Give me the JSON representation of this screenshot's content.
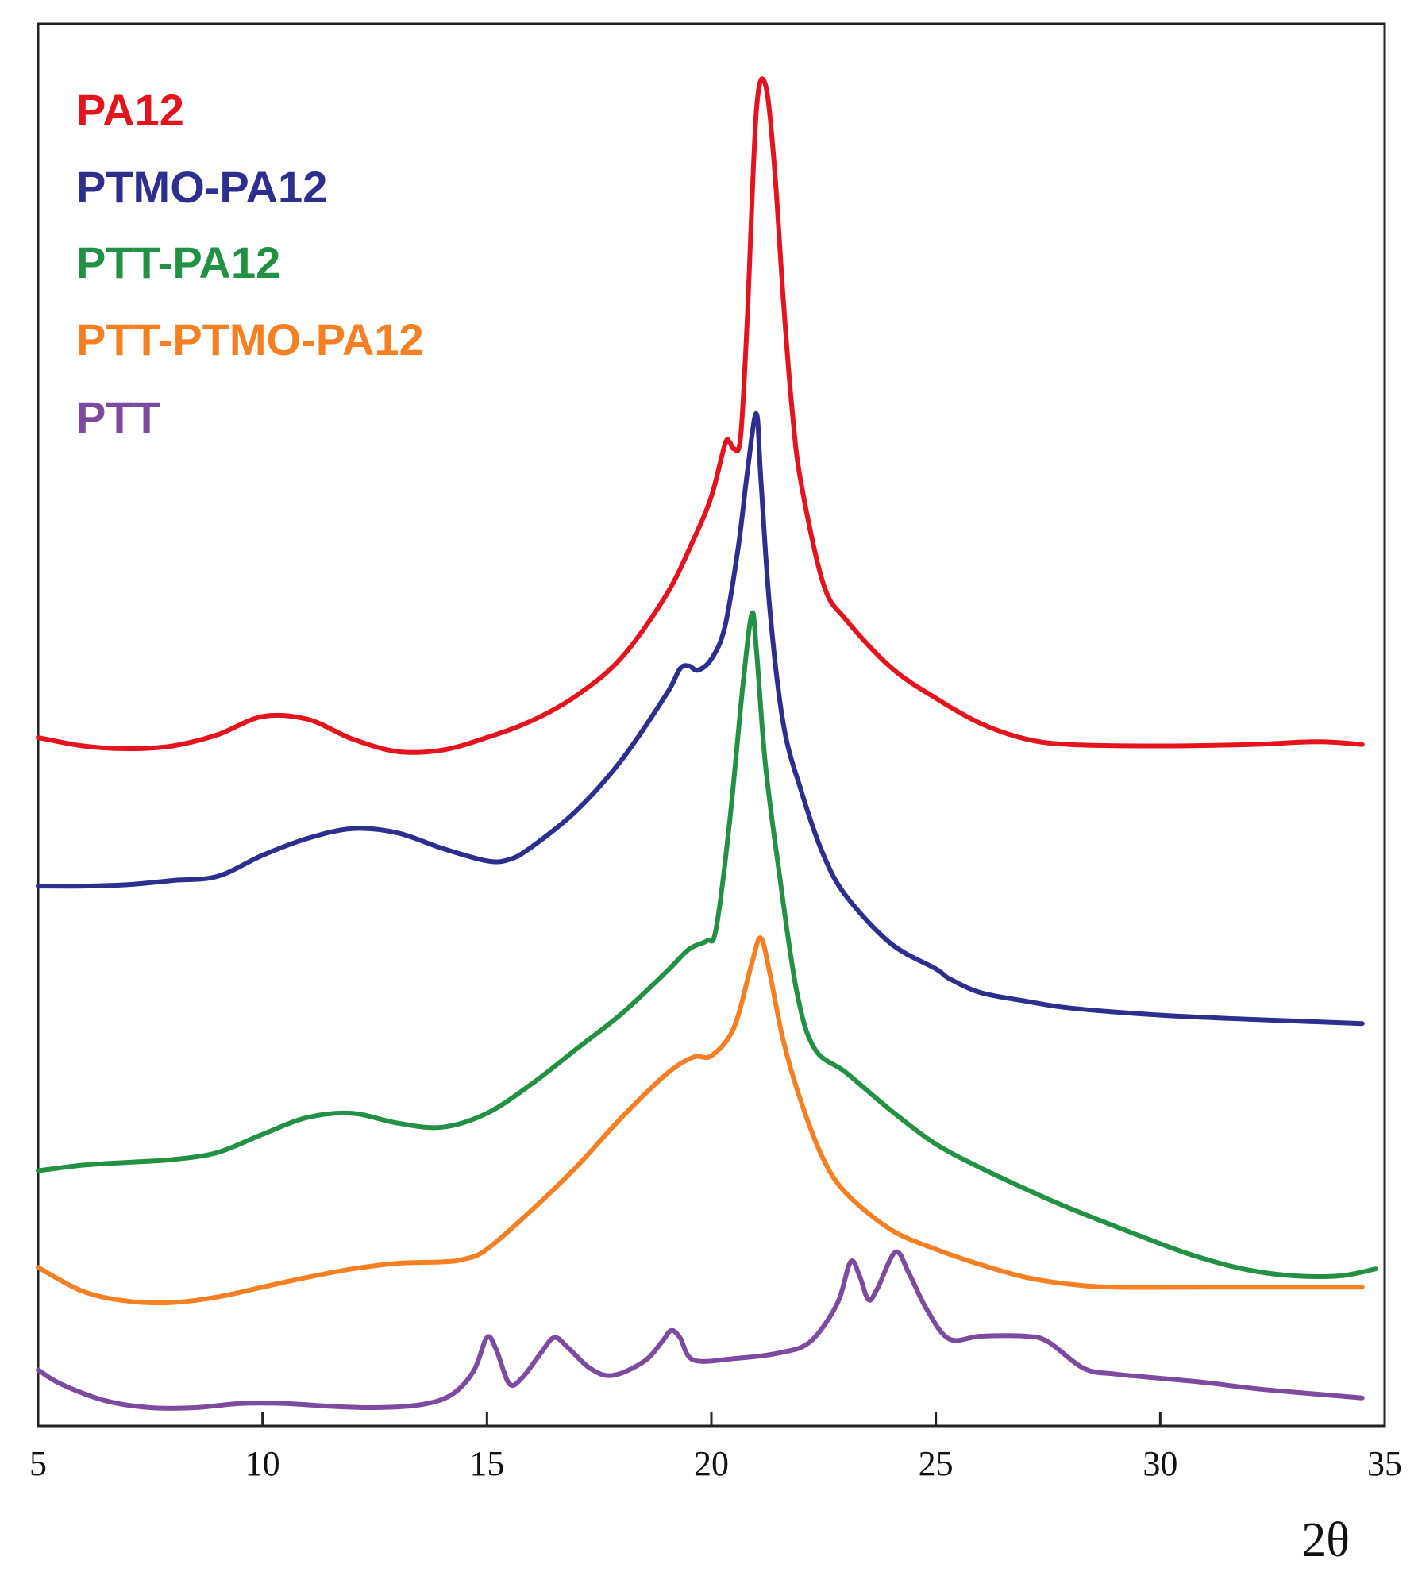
{
  "chart_data": {
    "type": "line",
    "title": "",
    "xlabel": "2θ",
    "ylabel": "",
    "xlim": [
      5,
      35
    ],
    "ylim": [
      0,
      100
    ],
    "xticks": [
      5,
      10,
      15,
      20,
      25,
      30,
      35
    ],
    "grid": false,
    "legend_position": "top-left",
    "y_axis_ticks_shown": false,
    "series": [
      {
        "name": "PA12",
        "color": "#e3141e",
        "points": [
          [
            5,
            49.1
          ],
          [
            6,
            48.5
          ],
          [
            7,
            48.3
          ],
          [
            8,
            48.5
          ],
          [
            9,
            49.3
          ],
          [
            10,
            50.6
          ],
          [
            11,
            50.4
          ],
          [
            12,
            49.0
          ],
          [
            13,
            48.1
          ],
          [
            14,
            48.2
          ],
          [
            15,
            49.1
          ],
          [
            16,
            50.3
          ],
          [
            17,
            52.1
          ],
          [
            18,
            54.8
          ],
          [
            19,
            59.3
          ],
          [
            19.6,
            63.2
          ],
          [
            20,
            66.3
          ],
          [
            20.3,
            70.0
          ],
          [
            20.4,
            70.2
          ],
          [
            20.5,
            69.7
          ],
          [
            20.65,
            70.5
          ],
          [
            20.8,
            79.0
          ],
          [
            21.0,
            93.7
          ],
          [
            21.2,
            95.7
          ],
          [
            21.4,
            90.0
          ],
          [
            21.6,
            80.4
          ],
          [
            21.8,
            72.4
          ],
          [
            22,
            67.2
          ],
          [
            22.5,
            60.0
          ],
          [
            23,
            57.5
          ],
          [
            24,
            54.1
          ],
          [
            25,
            51.9
          ],
          [
            26,
            50.1
          ],
          [
            27,
            49.0
          ],
          [
            28,
            48.6
          ],
          [
            30,
            48.5
          ],
          [
            32,
            48.6
          ],
          [
            33.5,
            48.8
          ],
          [
            34.5,
            48.6
          ]
        ]
      },
      {
        "name": "PTMO-PA12",
        "color": "#2d2e8e",
        "points": [
          [
            5,
            38.5
          ],
          [
            6,
            38.5
          ],
          [
            7,
            38.6
          ],
          [
            8,
            38.9
          ],
          [
            9,
            39.2
          ],
          [
            10,
            40.7
          ],
          [
            11,
            41.9
          ],
          [
            12,
            42.6
          ],
          [
            13,
            42.3
          ],
          [
            14,
            41.2
          ],
          [
            15,
            40.3
          ],
          [
            15.5,
            40.4
          ],
          [
            16,
            41.3
          ],
          [
            17,
            43.9
          ],
          [
            18,
            47.5
          ],
          [
            19,
            52.2
          ],
          [
            19.3,
            54.0
          ],
          [
            19.5,
            54.2
          ],
          [
            19.7,
            53.9
          ],
          [
            20,
            54.7
          ],
          [
            20.3,
            57.0
          ],
          [
            20.6,
            62.7
          ],
          [
            20.8,
            68.0
          ],
          [
            21.0,
            72.2
          ],
          [
            21.1,
            67.6
          ],
          [
            21.3,
            58.3
          ],
          [
            21.6,
            50.1
          ],
          [
            22,
            45.3
          ],
          [
            22.5,
            40.7
          ],
          [
            23,
            37.8
          ],
          [
            24,
            34.4
          ],
          [
            25,
            32.6
          ],
          [
            25.3,
            31.9
          ],
          [
            26,
            30.9
          ],
          [
            27,
            30.3
          ],
          [
            28,
            29.8
          ],
          [
            30,
            29.3
          ],
          [
            32,
            29.0
          ],
          [
            34.5,
            28.7
          ]
        ]
      },
      {
        "name": "PTT-PA12",
        "color": "#229143",
        "points": [
          [
            5,
            18.2
          ],
          [
            6,
            18.6
          ],
          [
            7,
            18.8
          ],
          [
            8,
            19.0
          ],
          [
            9,
            19.5
          ],
          [
            10,
            20.8
          ],
          [
            11,
            22.0
          ],
          [
            12,
            22.3
          ],
          [
            13,
            21.6
          ],
          [
            14,
            21.3
          ],
          [
            15,
            22.3
          ],
          [
            16,
            24.4
          ],
          [
            17,
            26.9
          ],
          [
            18,
            29.4
          ],
          [
            19,
            32.4
          ],
          [
            19.5,
            34.0
          ],
          [
            19.9,
            34.6
          ],
          [
            20.1,
            35.4
          ],
          [
            20.4,
            42.9
          ],
          [
            20.7,
            52.8
          ],
          [
            20.9,
            57.9
          ],
          [
            21.0,
            55.5
          ],
          [
            21.2,
            47.3
          ],
          [
            21.5,
            39.7
          ],
          [
            21.9,
            31.0
          ],
          [
            22.3,
            26.9
          ],
          [
            23,
            25.2
          ],
          [
            24,
            22.5
          ],
          [
            25,
            20.1
          ],
          [
            26,
            18.4
          ],
          [
            27,
            16.9
          ],
          [
            28,
            15.5
          ],
          [
            30,
            13.0
          ],
          [
            31,
            11.9
          ],
          [
            32,
            11.1
          ],
          [
            33,
            10.7
          ],
          [
            34,
            10.7
          ],
          [
            34.8,
            11.2
          ]
        ]
      },
      {
        "name": "PTT-PTMO-PA12",
        "color": "#f48023",
        "points": [
          [
            5,
            11.3
          ],
          [
            6,
            9.6
          ],
          [
            7,
            8.9
          ],
          [
            8,
            8.8
          ],
          [
            9,
            9.2
          ],
          [
            10,
            9.9
          ],
          [
            11,
            10.6
          ],
          [
            12,
            11.2
          ],
          [
            13,
            11.6
          ],
          [
            14,
            11.7
          ],
          [
            14.5,
            11.9
          ],
          [
            15,
            12.6
          ],
          [
            16,
            15.4
          ],
          [
            17,
            18.5
          ],
          [
            18,
            22.0
          ],
          [
            19,
            25.1
          ],
          [
            19.6,
            26.3
          ],
          [
            20,
            26.4
          ],
          [
            20.5,
            28.4
          ],
          [
            20.9,
            33.0
          ],
          [
            21.1,
            34.8
          ],
          [
            21.3,
            32.3
          ],
          [
            21.6,
            27.5
          ],
          [
            22,
            23.1
          ],
          [
            22.5,
            19.0
          ],
          [
            23,
            16.6
          ],
          [
            24,
            14.0
          ],
          [
            25,
            12.6
          ],
          [
            26,
            11.5
          ],
          [
            27,
            10.6
          ],
          [
            28,
            10.1
          ],
          [
            29,
            9.9
          ],
          [
            31,
            9.9
          ],
          [
            33,
            9.9
          ],
          [
            34.5,
            9.9
          ]
        ]
      },
      {
        "name": "PTT",
        "color": "#7c4a9e",
        "points": [
          [
            5,
            4.0
          ],
          [
            5.5,
            3.0
          ],
          [
            6.5,
            1.8
          ],
          [
            7.5,
            1.3
          ],
          [
            8.5,
            1.3
          ],
          [
            9.5,
            1.6
          ],
          [
            10.5,
            1.6
          ],
          [
            11.5,
            1.4
          ],
          [
            12.5,
            1.3
          ],
          [
            13.5,
            1.5
          ],
          [
            14.2,
            2.2
          ],
          [
            14.7,
            3.9
          ],
          [
            15.0,
            6.3
          ],
          [
            15.2,
            5.5
          ],
          [
            15.5,
            3.0
          ],
          [
            15.8,
            3.5
          ],
          [
            16.2,
            5.2
          ],
          [
            16.5,
            6.3
          ],
          [
            16.8,
            5.6
          ],
          [
            17.3,
            4.1
          ],
          [
            17.8,
            3.6
          ],
          [
            18.5,
            4.6
          ],
          [
            18.9,
            6.0
          ],
          [
            19.1,
            6.8
          ],
          [
            19.3,
            6.3
          ],
          [
            19.6,
            4.7
          ],
          [
            20.5,
            4.8
          ],
          [
            21.5,
            5.2
          ],
          [
            22.2,
            6.0
          ],
          [
            22.8,
            8.7
          ],
          [
            23.1,
            11.7
          ],
          [
            23.3,
            10.7
          ],
          [
            23.5,
            9.0
          ],
          [
            23.7,
            9.8
          ],
          [
            24.1,
            12.4
          ],
          [
            24.4,
            10.9
          ],
          [
            24.8,
            8.3
          ],
          [
            25.3,
            6.2
          ],
          [
            26,
            6.4
          ],
          [
            27,
            6.4
          ],
          [
            27.5,
            6.0
          ],
          [
            28.3,
            4.1
          ],
          [
            29,
            3.7
          ],
          [
            30,
            3.4
          ],
          [
            31,
            3.1
          ],
          [
            32,
            2.7
          ],
          [
            33,
            2.4
          ],
          [
            34.5,
            2.0
          ]
        ]
      }
    ]
  }
}
